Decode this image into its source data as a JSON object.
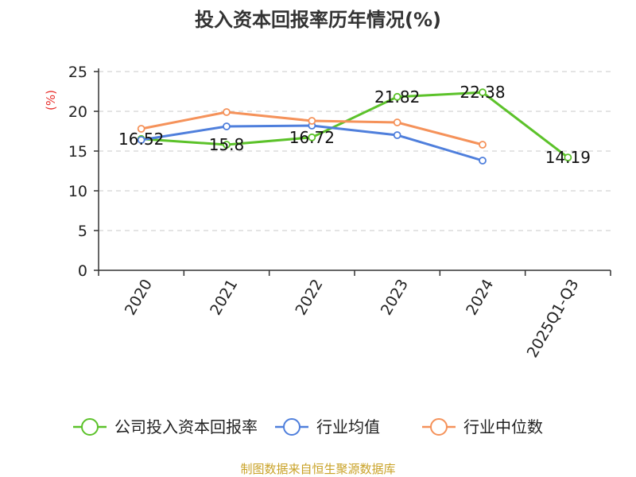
{
  "chart_data": {
    "type": "line",
    "title": "投入资本回报率历年情况(%)",
    "ylabel": "(%)",
    "xlabel": "",
    "ylim": [
      0,
      25
    ],
    "yticks": [
      0,
      5,
      10,
      15,
      20,
      25
    ],
    "grid": true,
    "legend_position": "bottom",
    "categories": [
      "2020",
      "2021",
      "2022",
      "2023",
      "2024",
      "2025Q1-Q3"
    ],
    "series": [
      {
        "name": "公司投入资本回报率",
        "color": "#5cc22a",
        "values": [
          16.52,
          15.8,
          16.72,
          21.82,
          22.38,
          14.19
        ],
        "labels": [
          "16.52",
          "15.8",
          "16.72",
          "21.82",
          "22.38",
          "14.19"
        ]
      },
      {
        "name": "行业均值",
        "color": "#4f7fdc",
        "values": [
          16.4,
          18.1,
          18.2,
          17.0,
          13.8,
          null
        ]
      },
      {
        "name": "行业中位数",
        "color": "#f5925a",
        "values": [
          17.8,
          19.9,
          18.8,
          18.6,
          15.8,
          null
        ]
      }
    ],
    "source": "制图数据来自恒生聚源数据库"
  }
}
